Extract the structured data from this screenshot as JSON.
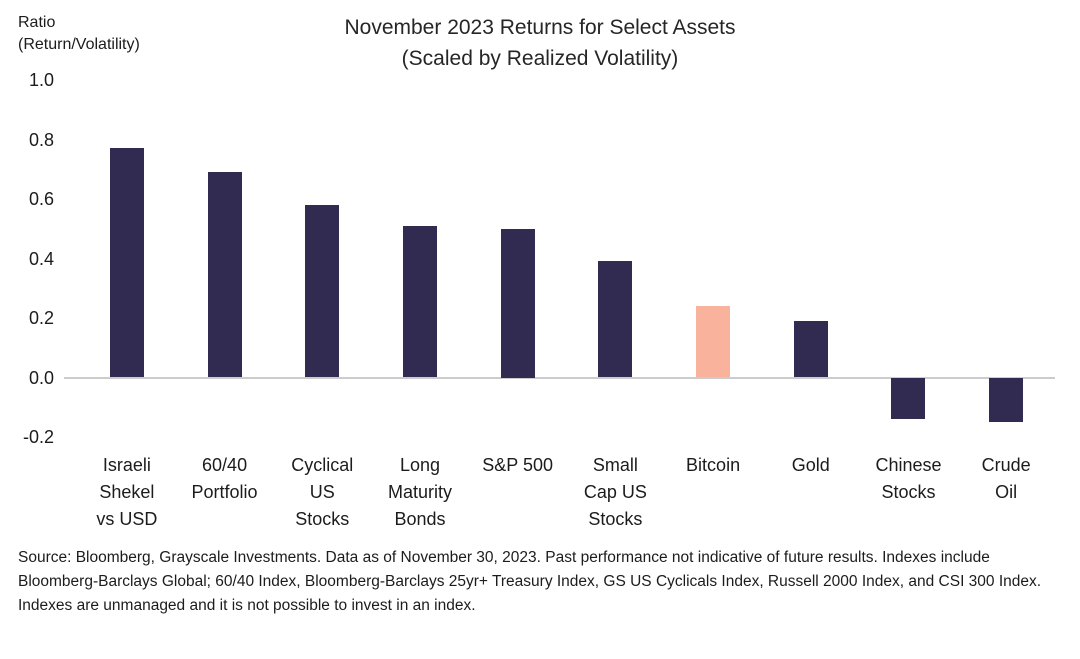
{
  "colors": {
    "bar": "#312b52",
    "highlight": "#f9b29c",
    "axis_line": "#cccccc"
  },
  "y_axis_title": "Ratio\n(Return/Volatility)",
  "chart_data": {
    "type": "bar",
    "title": "November 2023 Returns for Select Assets",
    "subtitle": "(Scaled by Realized Volatility)",
    "categories": [
      "Israeli\nShekel\nvs USD",
      "60/40\nPortfolio",
      "Cyclical\nUS\nStocks",
      "Long\nMaturity\nBonds",
      "S&P 500",
      "Small\nCap US\nStocks",
      "Bitcoin",
      "Gold",
      "Chinese\nStocks",
      "Crude\nOil"
    ],
    "values": [
      0.77,
      0.69,
      0.58,
      0.51,
      0.5,
      0.39,
      0.24,
      0.19,
      -0.14,
      -0.15
    ],
    "highlight_index": 6,
    "ylabel": "Ratio (Return/Volatility)",
    "ylim": [
      -0.2,
      1.0
    ],
    "yticks": [
      1.0,
      0.8,
      0.6,
      0.4,
      0.2,
      0.0,
      -0.2
    ],
    "ytick_labels": [
      "1.0",
      "0.8",
      "0.6",
      "0.4",
      "0.2",
      "0.0",
      "-0.2"
    ],
    "grid": "off",
    "legend": "none"
  },
  "source_note": "Source: Bloomberg, Grayscale Investments. Data as of November 30, 2023. Past performance not indicative of future results. Indexes include Bloomberg-Barclays Global; 60/40 Index, Bloomberg-Barclays 25yr+ Treasury Index, GS US Cyclicals Index, Russell 2000 Index, and CSI 300 Index. Indexes are unmanaged and it is not possible to invest in an index."
}
